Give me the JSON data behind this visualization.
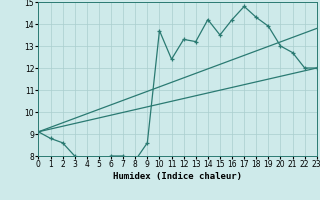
{
  "title": "",
  "xlabel": "Humidex (Indice chaleur)",
  "ylabel": "",
  "bg_color": "#ceeaea",
  "line_color": "#2a7a72",
  "grid_color": "#aacece",
  "x_min": 0,
  "x_max": 23,
  "y_min": 8,
  "y_max": 15,
  "zigzag_x": [
    0,
    1,
    2,
    3,
    4,
    5,
    6,
    7,
    8,
    9,
    10,
    11,
    12,
    13,
    14,
    15,
    16,
    17,
    18,
    19,
    20,
    21,
    22,
    23
  ],
  "zigzag_y": [
    9.1,
    8.8,
    8.6,
    8.0,
    7.7,
    7.8,
    8.0,
    8.0,
    7.8,
    8.6,
    13.7,
    12.4,
    13.3,
    13.2,
    14.2,
    13.5,
    14.2,
    14.8,
    14.3,
    13.9,
    13.0,
    12.7,
    12.0,
    12.0
  ],
  "upper_line_x": [
    0,
    23
  ],
  "upper_line_y": [
    9.1,
    13.8
  ],
  "lower_line_x": [
    0,
    23
  ],
  "lower_line_y": [
    9.1,
    12.0
  ],
  "yticks": [
    8,
    9,
    10,
    11,
    12,
    13,
    14,
    15
  ],
  "xticks": [
    0,
    1,
    2,
    3,
    4,
    5,
    6,
    7,
    8,
    9,
    10,
    11,
    12,
    13,
    14,
    15,
    16,
    17,
    18,
    19,
    20,
    21,
    22,
    23
  ],
  "xlabel_fontsize": 6.5,
  "tick_fontsize": 5.5
}
